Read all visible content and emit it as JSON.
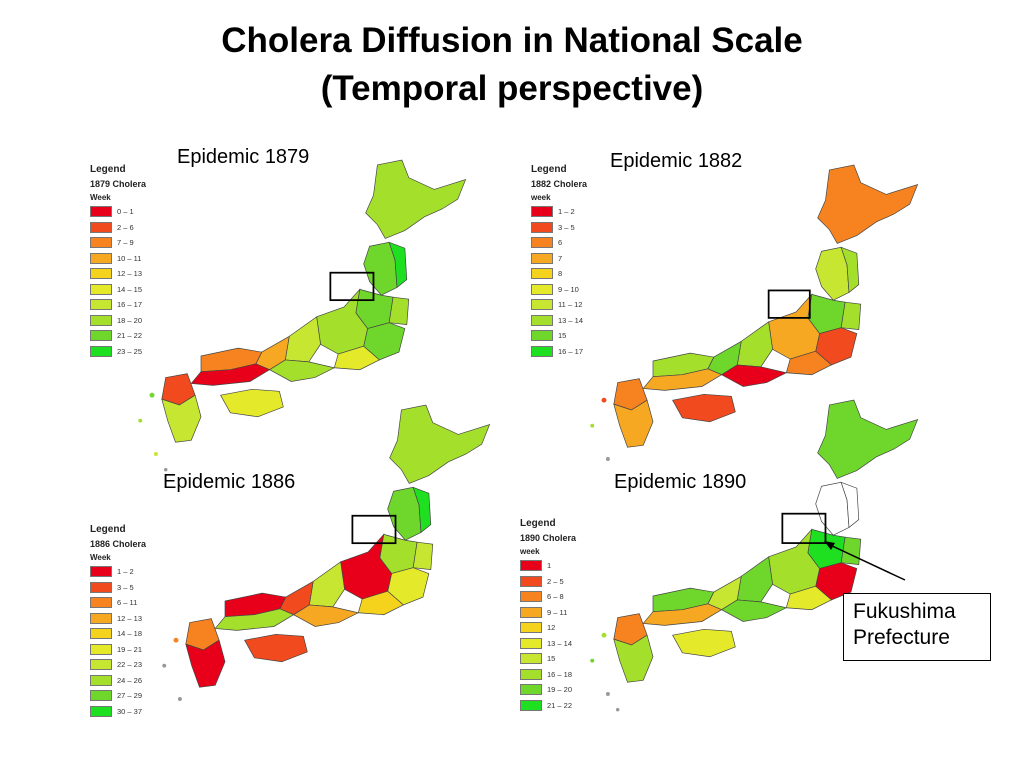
{
  "slide": {
    "title_line1": "Cholera Diffusion in National Scale",
    "title_line2": "(Temporal perspective)"
  },
  "panels": [
    {
      "label": "Epidemic 1879",
      "legend_title": "Legend",
      "legend_subtitle": "1879 Cholera",
      "legend_unit": "Week",
      "legend": [
        {
          "label": "0 – 1",
          "color": "#e8001a"
        },
        {
          "label": "2 – 6",
          "color": "#f04a1e"
        },
        {
          "label": "7 – 9",
          "color": "#f6831f"
        },
        {
          "label": "10 – 11",
          "color": "#f7a822"
        },
        {
          "label": "12 – 13",
          "color": "#f5d21c"
        },
        {
          "label": "14 – 15",
          "color": "#e4ea2a"
        },
        {
          "label": "16 – 17",
          "color": "#c6e632"
        },
        {
          "label": "18 – 20",
          "color": "#a4df2c"
        },
        {
          "label": "21 – 22",
          "color": "#6fd62b"
        },
        {
          "label": "23 – 25",
          "color": "#1fe020"
        }
      ]
    },
    {
      "label": "Epidemic 1882",
      "legend_title": "Legend",
      "legend_subtitle": "1882 Cholera",
      "legend_unit": "week",
      "legend": [
        {
          "label": "1 – 2",
          "color": "#e8001a"
        },
        {
          "label": "3 – 5",
          "color": "#f04a1e"
        },
        {
          "label": "6",
          "color": "#f6831f"
        },
        {
          "label": "7",
          "color": "#f7a822"
        },
        {
          "label": "8",
          "color": "#f5d21c"
        },
        {
          "label": "9 – 10",
          "color": "#e4ea2a"
        },
        {
          "label": "11 – 12",
          "color": "#c6e632"
        },
        {
          "label": "13 – 14",
          "color": "#a4df2c"
        },
        {
          "label": "15",
          "color": "#6fd62b"
        },
        {
          "label": "16 – 17",
          "color": "#1fe020"
        }
      ]
    },
    {
      "label": "Epidemic 1886",
      "legend_title": "Legend",
      "legend_subtitle": "1886 Cholera",
      "legend_unit": "Week",
      "legend": [
        {
          "label": "1 – 2",
          "color": "#e8001a"
        },
        {
          "label": "3 – 5",
          "color": "#f04a1e"
        },
        {
          "label": "6 – 11",
          "color": "#f6831f"
        },
        {
          "label": "12 – 13",
          "color": "#f7a822"
        },
        {
          "label": "14 – 18",
          "color": "#f5d21c"
        },
        {
          "label": "19 – 21",
          "color": "#e4ea2a"
        },
        {
          "label": "22 – 23",
          "color": "#c6e632"
        },
        {
          "label": "24 – 26",
          "color": "#a4df2c"
        },
        {
          "label": "27 – 29",
          "color": "#6fd62b"
        },
        {
          "label": "30 – 37",
          "color": "#1fe020"
        }
      ]
    },
    {
      "label": "Epidemic 1890",
      "legend_title": "Legend",
      "legend_subtitle": "1890 Cholera",
      "legend_unit": "week",
      "legend": [
        {
          "label": "1",
          "color": "#e8001a"
        },
        {
          "label": "2 – 5",
          "color": "#f04a1e"
        },
        {
          "label": "6 – 8",
          "color": "#f6831f"
        },
        {
          "label": "9 – 11",
          "color": "#f7a822"
        },
        {
          "label": "12",
          "color": "#f5d21c"
        },
        {
          "label": "13 – 14",
          "color": "#e4ea2a"
        },
        {
          "label": "15",
          "color": "#c6e632"
        },
        {
          "label": "16 – 18",
          "color": "#a4df2c"
        },
        {
          "label": "19 – 20",
          "color": "#6fd62b"
        },
        {
          "label": "21 – 22",
          "color": "#1fe020"
        }
      ]
    }
  ],
  "callout": {
    "line1": "Fukushima",
    "line2": "Prefecture"
  }
}
